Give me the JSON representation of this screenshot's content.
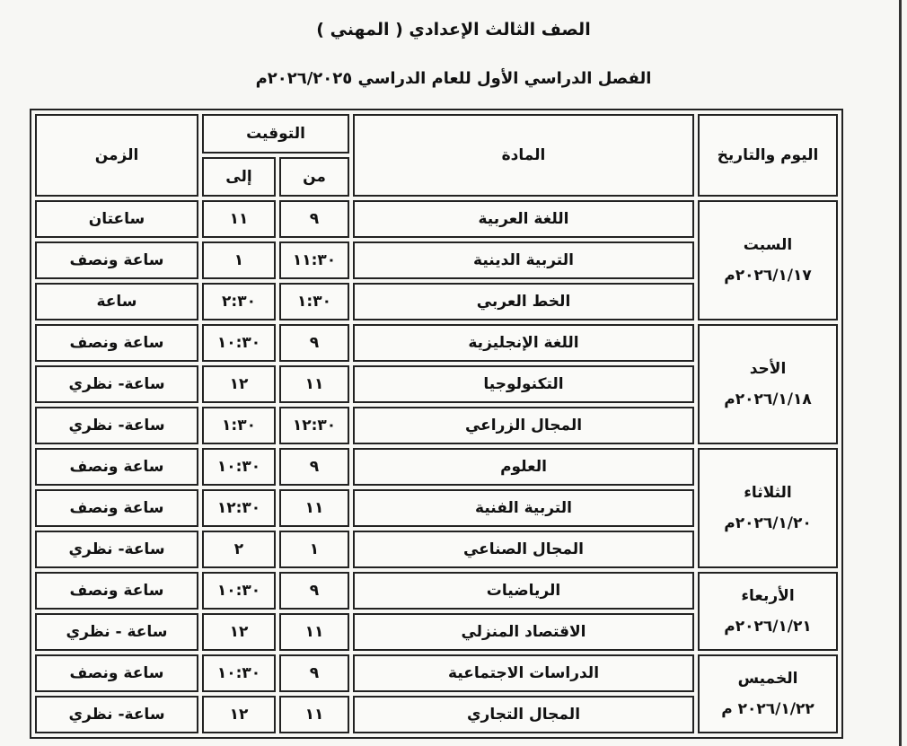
{
  "header": {
    "title": "الصف الثالث الإعدادي ( المهني )",
    "subtitle": "الفصل الدراسي الأول للعام الدراسي ٢٠٢٦/٢٠٢٥م"
  },
  "table": {
    "columns": {
      "day": "اليوم والتاريخ",
      "subject": "المادة",
      "timing": "التوقيت",
      "from": "من",
      "to": "إلى",
      "duration": "الزمن"
    },
    "days": [
      {
        "day": "السبت",
        "date": "٢٠٢٦/١/١٧م",
        "rows": [
          {
            "subject": "اللغة العربية",
            "from": "٩",
            "to": "١١",
            "duration": "ساعتان"
          },
          {
            "subject": "التربية الدينية",
            "from": "١١:٣٠",
            "to": "١",
            "duration": "ساعة ونصف"
          },
          {
            "subject": "الخط العربي",
            "from": "١:٣٠",
            "to": "٢:٣٠",
            "duration": "ساعة"
          }
        ]
      },
      {
        "day": "الأحد",
        "date": "٢٠٢٦/١/١٨م",
        "rows": [
          {
            "subject": "اللغة الإنجليزية",
            "from": "٩",
            "to": "١٠:٣٠",
            "duration": "ساعة ونصف"
          },
          {
            "subject": "التكنولوجيا",
            "from": "١١",
            "to": "١٢",
            "duration": "ساعة- نظري"
          },
          {
            "subject": "المجال الزراعي",
            "from": "١٢:٣٠",
            "to": "١:٣٠",
            "duration": "ساعة- نظري"
          }
        ]
      },
      {
        "day": "الثلاثاء",
        "date": "٢٠٢٦/١/٢٠م",
        "rows": [
          {
            "subject": "العلوم",
            "from": "٩",
            "to": "١٠:٣٠",
            "duration": "ساعة ونصف"
          },
          {
            "subject": "التربية الفنية",
            "from": "١١",
            "to": "١٢:٣٠",
            "duration": "ساعة ونصف"
          },
          {
            "subject": "المجال الصناعي",
            "from": "١",
            "to": "٢",
            "duration": "ساعة- نظري"
          }
        ]
      },
      {
        "day": "الأربعاء",
        "date": "٢٠٢٦/١/٢١م",
        "rows": [
          {
            "subject": "الرياضيات",
            "from": "٩",
            "to": "١٠:٣٠",
            "duration": "ساعة ونصف"
          },
          {
            "subject": "الاقتصاد المنزلي",
            "from": "١١",
            "to": "١٢",
            "duration": "ساعة - نظري"
          }
        ]
      },
      {
        "day": "الخميس",
        "date": "٢٠٢٦/١/٢٢ م",
        "rows": [
          {
            "subject": "الدراسات الاجتماعية",
            "from": "٩",
            "to": "١٠:٣٠",
            "duration": "ساعة ونصف"
          },
          {
            "subject": "المجال التجاري",
            "from": "١١",
            "to": "١٢",
            "duration": "ساعة- نظري"
          }
        ]
      }
    ]
  }
}
